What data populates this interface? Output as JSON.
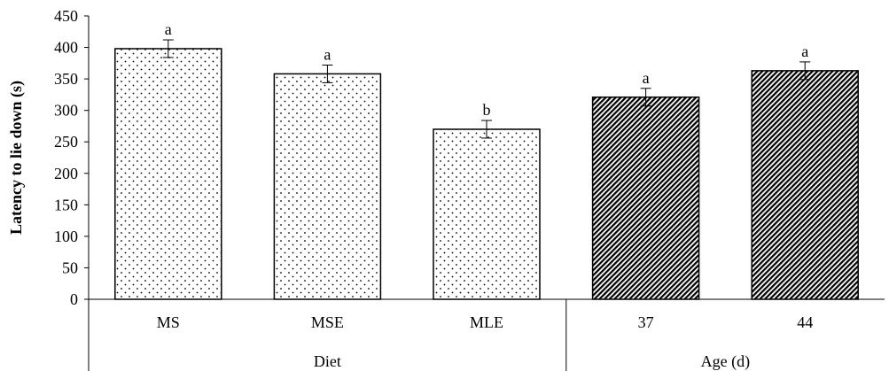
{
  "chart_data": {
    "type": "bar",
    "ylabel": "Latency to lie down (s)",
    "ylim": [
      0,
      450
    ],
    "yticks": [
      0,
      50,
      100,
      150,
      200,
      250,
      300,
      350,
      400,
      450
    ],
    "grid": false,
    "groups": [
      {
        "name": "Diet",
        "pattern": "dots",
        "bars": [
          {
            "category": "MS",
            "value": 398,
            "error": 14,
            "letter": "a"
          },
          {
            "category": "MSE",
            "value": 358,
            "error": 14,
            "letter": "a"
          },
          {
            "category": "MLE",
            "value": 270,
            "error": 14,
            "letter": "b"
          }
        ]
      },
      {
        "name": "Age (d)",
        "pattern": "diagonal-hatch",
        "bars": [
          {
            "category": "37",
            "value": 321,
            "error": 14,
            "letter": "a"
          },
          {
            "category": "44",
            "value": 363,
            "error": 14,
            "letter": "a"
          }
        ]
      }
    ]
  }
}
